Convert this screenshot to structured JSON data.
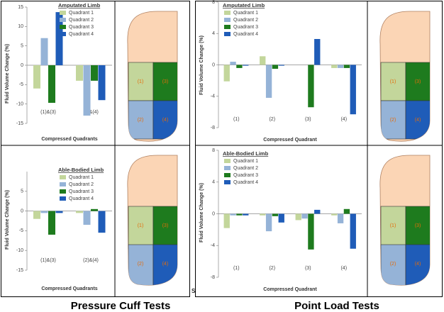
{
  "chart_data": [
    {
      "type": "bar",
      "title": "Amputated Limb",
      "xlabel": "Compressed Quadrants",
      "ylabel": "Fluid Volume Change (%)",
      "categories": [
        "(1)&(3)",
        "(2)&(4)"
      ],
      "series": [
        {
          "name": "Quadrant 1",
          "color": "#c3d69b",
          "values": [
            -6,
            -4
          ]
        },
        {
          "name": "Quadrant 2",
          "color": "#95b3d7",
          "values": [
            7,
            -13
          ]
        },
        {
          "name": "Quadrant 3",
          "color": "#1e7b1e",
          "values": [
            -9.7,
            -4
          ]
        },
        {
          "name": "Quadrant 4",
          "color": "#1f5cb8",
          "values": [
            13.7,
            -9
          ]
        }
      ],
      "ylim": [
        -15,
        15
      ],
      "yticks": [
        15,
        10,
        5,
        0,
        -5,
        -10,
        -15
      ],
      "legend": "upper right"
    },
    {
      "type": "bar",
      "title": "Able-Bodied Limb",
      "xlabel": "Compressed Quadrants",
      "ylabel": "Fluid Volume Change (%)",
      "categories": [
        "(1)&(3)",
        "(2)&(4)"
      ],
      "series": [
        {
          "name": "Quadrant 1",
          "color": "#c3d69b",
          "values": [
            -2,
            -0.5
          ]
        },
        {
          "name": "Quadrant 2",
          "color": "#95b3d7",
          "values": [
            -0.5,
            -3.5
          ]
        },
        {
          "name": "Quadrant 3",
          "color": "#1e7b1e",
          "values": [
            -6,
            0.5
          ]
        },
        {
          "name": "Quadrant 4",
          "color": "#1f5cb8",
          "values": [
            -0.5,
            -5.5
          ]
        }
      ],
      "ylim": [
        -15,
        10
      ],
      "yticks": [
        5,
        0,
        -5,
        -10,
        -15
      ],
      "legend": "upper right"
    },
    {
      "type": "bar",
      "title": "Amputated Limb",
      "xlabel": "Compressed Quadrant",
      "ylabel": "Fluid Volume Change (%)",
      "categories": [
        "(1)",
        "(2)",
        "(3)",
        "(4)"
      ],
      "series": [
        {
          "name": "Quadrant 1",
          "color": "#c3d69b",
          "values": [
            -2.1,
            1.1,
            0,
            -0.4
          ]
        },
        {
          "name": "Quadrant 2",
          "color": "#95b3d7",
          "values": [
            0.4,
            -4.2,
            0,
            -0.4
          ]
        },
        {
          "name": "Quadrant 3",
          "color": "#1e7b1e",
          "values": [
            -0.4,
            -0.5,
            -5.4,
            -0.4
          ]
        },
        {
          "name": "Quadrant 4",
          "color": "#1f5cb8",
          "values": [
            -0.1,
            -0.1,
            3.3,
            -6.3
          ]
        }
      ],
      "ylim": [
        -8,
        8
      ],
      "yticks": [
        8,
        4,
        0,
        -4,
        -8
      ],
      "legend": "upper left"
    },
    {
      "type": "bar",
      "title": "Able-Bodied Limb",
      "xlabel": "Compressed Quadrant",
      "ylabel": "Fluid Volume Change (%)",
      "categories": [
        "(1)",
        "(2)",
        "(3)",
        "(4)"
      ],
      "series": [
        {
          "name": "Quadrant 1",
          "color": "#c3d69b",
          "values": [
            -1.8,
            -0.2,
            -0.8,
            -0.2
          ]
        },
        {
          "name": "Quadrant 2",
          "color": "#95b3d7",
          "values": [
            -0.2,
            -2.2,
            -0.6,
            -1.2
          ]
        },
        {
          "name": "Quadrant 3",
          "color": "#1e7b1e",
          "values": [
            -0.2,
            -0.3,
            -4.5,
            0.6
          ]
        },
        {
          "name": "Quadrant 4",
          "color": "#1f5cb8",
          "values": [
            -0.2,
            -1.1,
            0.5,
            -4.4
          ]
        }
      ],
      "ylim": [
        -8,
        8
      ],
      "yticks": [
        8,
        4,
        0,
        -4,
        -8
      ],
      "legend": "upper left"
    }
  ],
  "limb_labels": [
    "(1)",
    "(2)",
    "(3)",
    "(4)"
  ],
  "stray_text": "s",
  "group_titles": [
    "Pressure Cuff Tests",
    "Point Load Tests"
  ]
}
